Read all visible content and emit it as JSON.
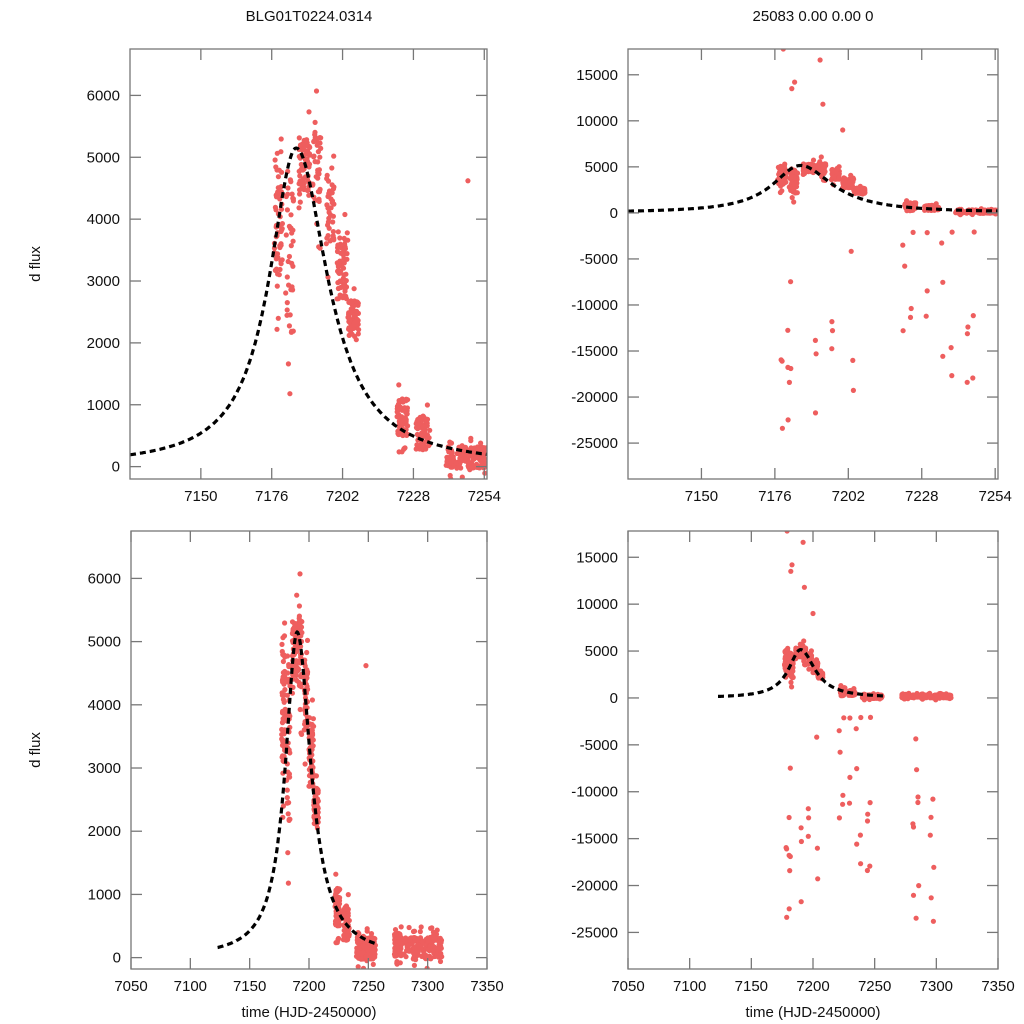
{
  "chart_data": [
    {
      "id": "top-left",
      "type": "scatter",
      "title": "BLG01T0224.0314",
      "xlabel": "",
      "ylabel": "d flux",
      "xlim": [
        7124,
        7255
      ],
      "ylim": [
        -200,
        6750
      ],
      "xticks": [
        7150,
        7176,
        7202,
        7228,
        7254
      ],
      "yticks": [
        0,
        1000,
        2000,
        3000,
        4000,
        5000,
        6000
      ],
      "model": {
        "t0": 7185,
        "peak": 5150,
        "width_rise": 12,
        "width_fall": 14,
        "style": "black dashed"
      },
      "point_color": "#ee5e5e",
      "grid": false
    },
    {
      "id": "top-right",
      "type": "scatter",
      "title": "25083  0.00  0.00  0",
      "xlabel": "",
      "ylabel": "",
      "xlim": [
        7124,
        7255
      ],
      "ylim": [
        -28900,
        17800
      ],
      "xticks": [
        7150,
        7176,
        7202,
        7228,
        7254
      ],
      "yticks": [
        -25000,
        -20000,
        -15000,
        -10000,
        -5000,
        0,
        5000,
        10000,
        15000
      ],
      "model": {
        "t0": 7185,
        "peak": 5150,
        "width_rise": 12,
        "width_fall": 14,
        "style": "black dashed"
      },
      "point_color": "#ee5e5e",
      "grid": false
    },
    {
      "id": "bottom-left",
      "type": "scatter",
      "title": "",
      "xlabel": "time (HJD-2450000)",
      "ylabel": "d flux",
      "xlim": [
        7050,
        7350
      ],
      "ylim": [
        -180,
        6750
      ],
      "xticks": [
        7050,
        7100,
        7150,
        7200,
        7250,
        7300,
        7350
      ],
      "yticks": [
        0,
        1000,
        2000,
        3000,
        4000,
        5000,
        6000
      ],
      "model": {
        "t0": 7190,
        "peak": 5150,
        "range": [
          7123,
          7257
        ],
        "style": "black dashed"
      },
      "point_color": "#ee5e5e",
      "grid": false
    },
    {
      "id": "bottom-right",
      "type": "scatter",
      "title": "",
      "xlabel": "time (HJD-2450000)",
      "ylabel": "",
      "xlim": [
        7050,
        7350
      ],
      "ylim": [
        -28900,
        17800
      ],
      "xticks": [
        7050,
        7100,
        7150,
        7200,
        7250,
        7300,
        7350
      ],
      "yticks": [
        -25000,
        -20000,
        -15000,
        -10000,
        -5000,
        0,
        5000,
        10000,
        15000
      ],
      "model": {
        "t0": 7190,
        "peak": 5150,
        "range": [
          7123,
          7257
        ],
        "style": "black dashed"
      },
      "point_color": "#ee5e5e",
      "grid": false
    }
  ],
  "data_clusters": [
    {
      "t": [
        7177,
        7180
      ],
      "y_mid": 4000,
      "spread": 2200,
      "n": 60
    },
    {
      "t": [
        7181,
        7184
      ],
      "y_mid": 3500,
      "spread": 2800,
      "n": 40
    },
    {
      "t": [
        7186,
        7190
      ],
      "y_mid": 4900,
      "spread": 900,
      "n": 70
    },
    {
      "t": [
        7191,
        7194
      ],
      "y_mid": 4800,
      "spread": 1300,
      "n": 40
    },
    {
      "t": [
        7196,
        7199
      ],
      "y_mid": 4200,
      "spread": 1200,
      "n": 40
    },
    {
      "t": [
        7200,
        7204
      ],
      "y_mid": 3200,
      "spread": 1000,
      "n": 60
    },
    {
      "t": [
        7204,
        7208
      ],
      "y_mid": 2400,
      "spread": 600,
      "n": 70
    },
    {
      "t": [
        7222,
        7226
      ],
      "y_mid": 800,
      "spread": 600,
      "n": 70
    },
    {
      "t": [
        7229,
        7234
      ],
      "y_mid": 550,
      "spread": 550,
      "n": 70
    },
    {
      "t": [
        7240,
        7256
      ],
      "y_mid": 150,
      "spread": 350,
      "n": 160
    },
    {
      "t": [
        7272,
        7278
      ],
      "y_mid": 200,
      "spread": 350,
      "n": 90
    },
    {
      "t": [
        7280,
        7312
      ],
      "y_mid": 150,
      "spread": 350,
      "n": 160
    }
  ]
}
